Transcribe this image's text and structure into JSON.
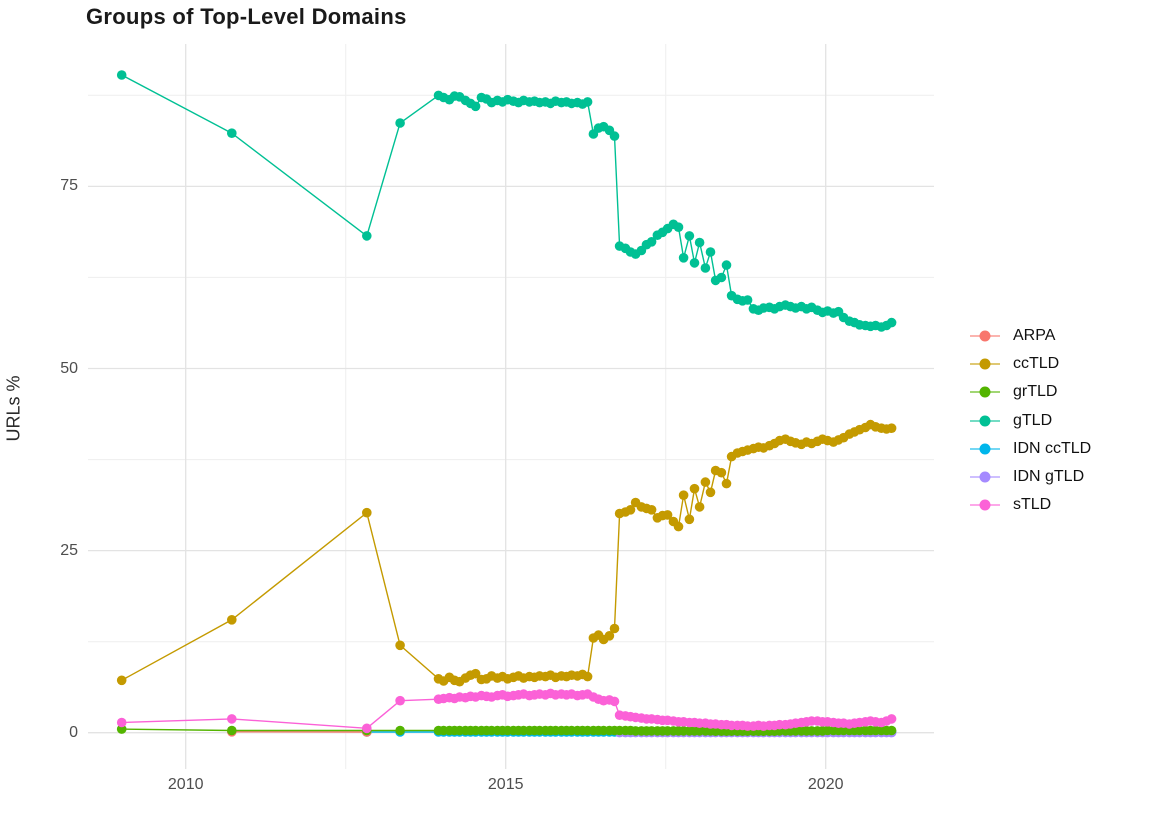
{
  "chart_data": {
    "type": "line",
    "title": "Groups of Top-Level Domains",
    "ylabel": "URLs %",
    "xlabel": "",
    "x_ticks_major": [
      2010,
      2015,
      2020
    ],
    "x_ticks_minor": [
      2012.5,
      2017.5
    ],
    "y_ticks_major": [
      0,
      25,
      50,
      75
    ],
    "y_ticks_minor": [
      12.5,
      37.5,
      62.5,
      87.5
    ],
    "x_range": [
      2008.5,
      2021.7
    ],
    "y_range": [
      -2,
      94
    ],
    "grid": "on",
    "legend_position": "right",
    "x": [
      2009.0,
      2010.72,
      2012.83,
      2013.35,
      2013.95,
      2014.03,
      2014.12,
      2014.2,
      2014.28,
      2014.37,
      2014.45,
      2014.53,
      2014.62,
      2014.7,
      2014.78,
      2014.87,
      2014.95,
      2015.03,
      2015.12,
      2015.2,
      2015.28,
      2015.37,
      2015.45,
      2015.53,
      2015.62,
      2015.7,
      2015.78,
      2015.87,
      2015.95,
      2016.03,
      2016.12,
      2016.2,
      2016.28,
      2016.37,
      2016.45,
      2016.53,
      2016.62,
      2016.7,
      2016.78,
      2016.87,
      2016.95,
      2017.03,
      2017.12,
      2017.2,
      2017.28,
      2017.37,
      2017.45,
      2017.53,
      2017.62,
      2017.7,
      2017.78,
      2017.87,
      2017.95,
      2018.03,
      2018.12,
      2018.2,
      2018.28,
      2018.37,
      2018.45,
      2018.53,
      2018.62,
      2018.7,
      2018.78,
      2018.87,
      2018.95,
      2019.03,
      2019.12,
      2019.2,
      2019.28,
      2019.37,
      2019.45,
      2019.53,
      2019.62,
      2019.7,
      2019.78,
      2019.87,
      2019.95,
      2020.03,
      2020.12,
      2020.2,
      2020.28,
      2020.37,
      2020.45,
      2020.53,
      2020.62,
      2020.7,
      2020.78,
      2020.87,
      2020.95,
      2021.03
    ],
    "series": [
      {
        "name": "ARPA",
        "color": "#F8766D",
        "z": 3,
        "x_override": [
          2010.72,
          2012.83
        ],
        "values": [
          0.12,
          0.1
        ]
      },
      {
        "name": "ccTLD",
        "color": "#C49A00",
        "z": 6,
        "values": [
          7.2,
          15.5,
          30.2,
          12.0,
          7.4,
          7.1,
          7.6,
          7.2,
          7.0,
          7.5,
          7.9,
          8.1,
          7.3,
          7.4,
          7.8,
          7.5,
          7.7,
          7.4,
          7.6,
          7.8,
          7.5,
          7.7,
          7.6,
          7.8,
          7.7,
          7.9,
          7.6,
          7.8,
          7.7,
          7.9,
          7.8,
          8.0,
          7.7,
          13.0,
          13.4,
          12.8,
          13.3,
          14.3,
          30.1,
          30.3,
          30.6,
          31.6,
          31.0,
          30.8,
          30.6,
          29.5,
          29.8,
          29.9,
          29.0,
          28.3,
          32.6,
          29.3,
          33.5,
          31.0,
          34.4,
          33.0,
          36.0,
          35.7,
          34.2,
          37.9,
          38.4,
          38.6,
          38.8,
          39.0,
          39.2,
          39.1,
          39.4,
          39.7,
          40.1,
          40.3,
          40.0,
          39.8,
          39.6,
          39.9,
          39.7,
          40.0,
          40.3,
          40.1,
          39.9,
          40.2,
          40.5,
          41.0,
          41.3,
          41.6,
          41.9,
          42.3,
          42.0,
          41.8,
          41.7,
          41.8
        ]
      },
      {
        "name": "grTLD",
        "color": "#53B400",
        "z": 4,
        "values": [
          0.5,
          0.3,
          0.3,
          0.3,
          0.3,
          0.3,
          0.3,
          0.3,
          0.3,
          0.3,
          0.3,
          0.3,
          0.3,
          0.3,
          0.3,
          0.3,
          0.3,
          0.3,
          0.3,
          0.3,
          0.3,
          0.3,
          0.3,
          0.3,
          0.3,
          0.3,
          0.3,
          0.3,
          0.3,
          0.3,
          0.3,
          0.3,
          0.3,
          0.3,
          0.3,
          0.3,
          0.3,
          0.3,
          0.3,
          0.3,
          0.3,
          0.25,
          0.25,
          0.25,
          0.25,
          0.25,
          0.25,
          0.25,
          0.25,
          0.25,
          0.25,
          0.25,
          0.25,
          0.25,
          0.25,
          0.25,
          0.2,
          0.2,
          0.2,
          0.2,
          0.2,
          0.2,
          0.2,
          0.2,
          0.2,
          0.2,
          0.2,
          0.2,
          0.25,
          0.25,
          0.25,
          0.25,
          0.25,
          0.25,
          0.25,
          0.25,
          0.25,
          0.3,
          0.3,
          0.3,
          0.3,
          0.3,
          0.3,
          0.3,
          0.3,
          0.3,
          0.3,
          0.3,
          0.3,
          0.3
        ]
      },
      {
        "name": "gTLD",
        "color": "#00C094",
        "z": 7,
        "values": [
          90.3,
          82.3,
          68.2,
          83.7,
          87.5,
          87.2,
          86.9,
          87.4,
          87.3,
          86.8,
          86.4,
          86.0,
          87.2,
          87.0,
          86.5,
          86.8,
          86.6,
          86.9,
          86.7,
          86.5,
          86.8,
          86.6,
          86.7,
          86.5,
          86.6,
          86.4,
          86.7,
          86.5,
          86.6,
          86.4,
          86.5,
          86.3,
          86.6,
          82.2,
          83.0,
          83.2,
          82.7,
          81.9,
          66.8,
          66.5,
          66.0,
          65.7,
          66.2,
          67.0,
          67.4,
          68.3,
          68.7,
          69.2,
          69.8,
          69.4,
          65.2,
          68.2,
          64.5,
          67.3,
          63.8,
          66.0,
          62.1,
          62.5,
          64.2,
          60.0,
          59.5,
          59.3,
          59.4,
          58.2,
          58.0,
          58.3,
          58.4,
          58.2,
          58.5,
          58.7,
          58.5,
          58.3,
          58.5,
          58.2,
          58.4,
          58.0,
          57.7,
          57.9,
          57.6,
          57.8,
          57.0,
          56.5,
          56.3,
          56.0,
          55.9,
          55.8,
          55.9,
          55.7,
          55.9,
          56.3
        ]
      },
      {
        "name": "IDN ccTLD",
        "color": "#00B6EB",
        "z": 1,
        "start_index": 2,
        "fill": 0.1
      },
      {
        "name": "IDN gTLD",
        "color": "#A58AFF",
        "z": 2,
        "start_index": 38,
        "fill": 0.02
      },
      {
        "name": "sTLD",
        "color": "#FB61D7",
        "z": 5,
        "values": [
          1.4,
          1.9,
          0.6,
          4.4,
          4.6,
          4.7,
          4.8,
          4.7,
          4.9,
          4.8,
          5.0,
          4.9,
          5.1,
          5.0,
          4.9,
          5.1,
          5.2,
          5.0,
          5.1,
          5.2,
          5.3,
          5.1,
          5.2,
          5.3,
          5.2,
          5.4,
          5.2,
          5.3,
          5.2,
          5.3,
          5.1,
          5.2,
          5.3,
          4.9,
          4.6,
          4.4,
          4.5,
          4.3,
          2.4,
          2.3,
          2.2,
          2.1,
          2.0,
          1.9,
          1.9,
          1.8,
          1.7,
          1.7,
          1.6,
          1.5,
          1.5,
          1.4,
          1.4,
          1.3,
          1.3,
          1.2,
          1.2,
          1.1,
          1.1,
          1.0,
          1.0,
          1.0,
          0.9,
          0.9,
          1.0,
          0.9,
          1.0,
          1.0,
          1.1,
          1.1,
          1.2,
          1.3,
          1.4,
          1.5,
          1.6,
          1.6,
          1.5,
          1.5,
          1.4,
          1.3,
          1.3,
          1.2,
          1.3,
          1.4,
          1.5,
          1.6,
          1.5,
          1.4,
          1.6,
          1.9
        ]
      }
    ],
    "colors": {
      "grid_major": "#E3E3E3",
      "grid_minor": "#F0F0F0",
      "tick_text": "#4e4e4e",
      "title_text": "#1a1a1a"
    }
  }
}
